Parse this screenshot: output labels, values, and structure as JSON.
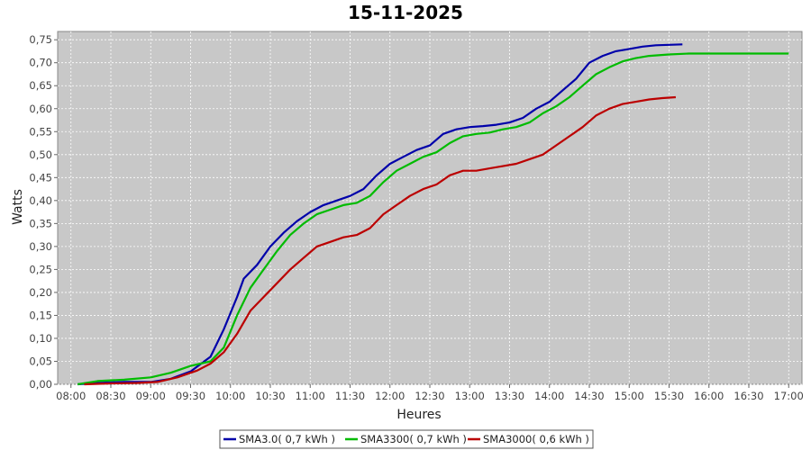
{
  "chart_data": {
    "type": "line",
    "title": "15-11-2025",
    "xlabel": "Heures",
    "ylabel": "Watts",
    "xlim": [
      "08:00",
      "17:00"
    ],
    "ylim": [
      0,
      0.75
    ],
    "x_ticks": [
      "08:00",
      "08:30",
      "09:00",
      "09:30",
      "10:00",
      "10:30",
      "11:00",
      "11:30",
      "12:00",
      "12:30",
      "13:00",
      "13:30",
      "14:00",
      "14:30",
      "15:00",
      "15:30",
      "16:00",
      "16:30",
      "17:00"
    ],
    "y_ticks": [
      "0,00",
      "0,05",
      "0,10",
      "0,15",
      "0,20",
      "0,25",
      "0,30",
      "0,35",
      "0,40",
      "0,45",
      "0,50",
      "0,55",
      "0,60",
      "0,65",
      "0,70",
      "0,75"
    ],
    "grid": true,
    "legend_position": "bottom",
    "series": [
      {
        "name": "SMA3.0( 0,7 kWh )",
        "color": "#0000aa",
        "points": [
          [
            "08:05",
            0.0
          ],
          [
            "08:20",
            0.003
          ],
          [
            "08:40",
            0.005
          ],
          [
            "09:00",
            0.005
          ],
          [
            "09:15",
            0.012
          ],
          [
            "09:30",
            0.028
          ],
          [
            "09:45",
            0.06
          ],
          [
            "09:55",
            0.12
          ],
          [
            "10:05",
            0.19
          ],
          [
            "10:10",
            0.23
          ],
          [
            "10:20",
            0.26
          ],
          [
            "10:30",
            0.3
          ],
          [
            "10:40",
            0.33
          ],
          [
            "10:50",
            0.355
          ],
          [
            "11:00",
            0.375
          ],
          [
            "11:10",
            0.39
          ],
          [
            "11:20",
            0.4
          ],
          [
            "11:30",
            0.41
          ],
          [
            "11:40",
            0.425
          ],
          [
            "11:50",
            0.455
          ],
          [
            "12:00",
            0.48
          ],
          [
            "12:10",
            0.495
          ],
          [
            "12:20",
            0.51
          ],
          [
            "12:30",
            0.52
          ],
          [
            "12:40",
            0.545
          ],
          [
            "12:50",
            0.555
          ],
          [
            "13:00",
            0.56
          ],
          [
            "13:10",
            0.562
          ],
          [
            "13:20",
            0.565
          ],
          [
            "13:30",
            0.57
          ],
          [
            "13:40",
            0.58
          ],
          [
            "13:50",
            0.6
          ],
          [
            "14:00",
            0.615
          ],
          [
            "14:10",
            0.64
          ],
          [
            "14:20",
            0.665
          ],
          [
            "14:30",
            0.7
          ],
          [
            "14:40",
            0.715
          ],
          [
            "14:50",
            0.725
          ],
          [
            "15:00",
            0.73
          ],
          [
            "15:10",
            0.735
          ],
          [
            "15:20",
            0.738
          ],
          [
            "15:40",
            0.74
          ]
        ]
      },
      {
        "name": "SMA3300( 0,7 kWh )",
        "color": "#00bb00",
        "points": [
          [
            "08:05",
            0.0
          ],
          [
            "08:20",
            0.007
          ],
          [
            "08:40",
            0.01
          ],
          [
            "09:00",
            0.015
          ],
          [
            "09:15",
            0.025
          ],
          [
            "09:30",
            0.04
          ],
          [
            "09:45",
            0.05
          ],
          [
            "09:55",
            0.08
          ],
          [
            "10:05",
            0.15
          ],
          [
            "10:15",
            0.21
          ],
          [
            "10:25",
            0.25
          ],
          [
            "10:35",
            0.29
          ],
          [
            "10:45",
            0.325
          ],
          [
            "10:55",
            0.35
          ],
          [
            "11:05",
            0.37
          ],
          [
            "11:15",
            0.38
          ],
          [
            "11:25",
            0.39
          ],
          [
            "11:35",
            0.395
          ],
          [
            "11:45",
            0.41
          ],
          [
            "11:55",
            0.44
          ],
          [
            "12:05",
            0.465
          ],
          [
            "12:15",
            0.48
          ],
          [
            "12:25",
            0.495
          ],
          [
            "12:35",
            0.505
          ],
          [
            "12:45",
            0.525
          ],
          [
            "12:55",
            0.54
          ],
          [
            "13:05",
            0.545
          ],
          [
            "13:15",
            0.548
          ],
          [
            "13:25",
            0.555
          ],
          [
            "13:35",
            0.56
          ],
          [
            "13:45",
            0.57
          ],
          [
            "13:55",
            0.59
          ],
          [
            "14:05",
            0.605
          ],
          [
            "14:15",
            0.625
          ],
          [
            "14:25",
            0.65
          ],
          [
            "14:35",
            0.675
          ],
          [
            "14:45",
            0.69
          ],
          [
            "14:55",
            0.703
          ],
          [
            "15:05",
            0.71
          ],
          [
            "15:15",
            0.715
          ],
          [
            "15:30",
            0.718
          ],
          [
            "15:45",
            0.72
          ],
          [
            "16:30",
            0.72
          ],
          [
            "17:00",
            0.72
          ]
        ]
      },
      {
        "name": "SMA3000( 0,6 kWh )",
        "color": "#bb0000",
        "points": [
          [
            "08:10",
            0.0
          ],
          [
            "08:30",
            0.002
          ],
          [
            "08:50",
            0.003
          ],
          [
            "09:05",
            0.005
          ],
          [
            "09:20",
            0.015
          ],
          [
            "09:35",
            0.03
          ],
          [
            "09:45",
            0.045
          ],
          [
            "09:55",
            0.07
          ],
          [
            "10:05",
            0.11
          ],
          [
            "10:15",
            0.16
          ],
          [
            "10:25",
            0.19
          ],
          [
            "10:35",
            0.22
          ],
          [
            "10:45",
            0.25
          ],
          [
            "10:55",
            0.275
          ],
          [
            "11:05",
            0.3
          ],
          [
            "11:15",
            0.31
          ],
          [
            "11:25",
            0.32
          ],
          [
            "11:35",
            0.325
          ],
          [
            "11:45",
            0.34
          ],
          [
            "11:55",
            0.37
          ],
          [
            "12:05",
            0.39
          ],
          [
            "12:15",
            0.41
          ],
          [
            "12:25",
            0.425
          ],
          [
            "12:35",
            0.435
          ],
          [
            "12:45",
            0.455
          ],
          [
            "12:55",
            0.465
          ],
          [
            "13:05",
            0.465
          ],
          [
            "13:15",
            0.47
          ],
          [
            "13:25",
            0.475
          ],
          [
            "13:35",
            0.48
          ],
          [
            "13:45",
            0.49
          ],
          [
            "13:55",
            0.5
          ],
          [
            "14:05",
            0.52
          ],
          [
            "14:15",
            0.54
          ],
          [
            "14:25",
            0.56
          ],
          [
            "14:35",
            0.585
          ],
          [
            "14:45",
            0.6
          ],
          [
            "14:55",
            0.61
          ],
          [
            "15:05",
            0.615
          ],
          [
            "15:15",
            0.62
          ],
          [
            "15:25",
            0.623
          ],
          [
            "15:35",
            0.625
          ]
        ]
      }
    ]
  }
}
